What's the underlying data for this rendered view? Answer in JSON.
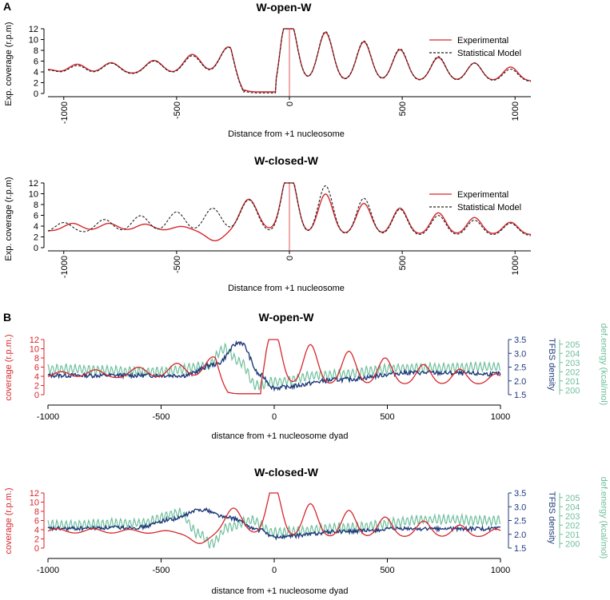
{
  "panel_labels": [
    "A",
    "B"
  ],
  "colors": {
    "experimental": "#d7262c",
    "model": "#222222",
    "coverage": "#d7262c",
    "tfbs": "#1f3a7a",
    "energy": "#6fbf9d",
    "axis": "#000000",
    "marker": "#d7262c"
  },
  "chart_data": [
    {
      "type": "line",
      "title": "W-open-W",
      "xlabel": "Distance from +1 nucleosome",
      "ylabel": "Exp. coverage (r.p.m)",
      "xlim": [
        -1070,
        1070
      ],
      "ylim": [
        0,
        12
      ],
      "xticks": [
        -1000,
        -500,
        0,
        500,
        1000
      ],
      "xtick_labels": [
        "-1000",
        "-500",
        "0",
        "500",
        "1000"
      ],
      "yticks": [
        0,
        2,
        4,
        6,
        8,
        10,
        12
      ],
      "ytick_labels": [
        "0",
        "2",
        "4",
        "6",
        "8",
        "10",
        "12"
      ],
      "vline": 0,
      "legend": [
        "Experimental",
        "Statistical Model"
      ],
      "series": [
        {
          "name": "Experimental",
          "style": "solid",
          "left_base": 4.5,
          "left_pos": [
            -1070,
            -940,
            -790,
            -600,
            -430,
            -270
          ],
          "left_amp": [
            0.6,
            1.3,
            1.5,
            1.8,
            2.6,
            3.6
          ],
          "gap": [
            -200,
            -60
          ],
          "gap_level": 0.3,
          "right_pos": [
            0,
            160,
            330,
            490,
            660,
            820,
            980
          ],
          "right_amp": [
            8.0,
            6.2,
            5.0,
            4.0,
            3.0,
            2.3,
            1.8
          ],
          "right_base": 3.9
        },
        {
          "name": "Statistical Model",
          "style": "dashed",
          "left_base": 4.4,
          "left_pos": [
            -1070,
            -940,
            -790,
            -600,
            -430,
            -270
          ],
          "left_amp": [
            0.6,
            1.2,
            1.5,
            1.8,
            2.5,
            3.6
          ],
          "gap": [
            -200,
            -60
          ],
          "gap_level": 0.1,
          "right_pos": [
            0,
            160,
            330,
            490,
            660,
            820,
            980
          ],
          "right_amp": [
            8.2,
            6.4,
            5.2,
            4.2,
            3.2,
            2.4,
            1.6
          ],
          "right_base": 3.8
        }
      ]
    },
    {
      "type": "line",
      "title": "W-closed-W",
      "xlabel": "Distance from +1 nucleosome",
      "ylabel": "Exp. coverage (r.p.m)",
      "xlim": [
        -1070,
        1070
      ],
      "ylim": [
        0,
        12
      ],
      "xticks": [
        -1000,
        -500,
        0,
        500,
        1000
      ],
      "xtick_labels": [
        "-1000",
        "-500",
        "0",
        "500",
        "1000"
      ],
      "yticks": [
        0,
        2,
        4,
        6,
        8,
        10,
        12
      ],
      "ytick_labels": [
        "0",
        "2",
        "4",
        "6",
        "8",
        "10",
        "12"
      ],
      "vline": 0,
      "legend": [
        "Experimental",
        "Statistical Model"
      ],
      "series": [
        {
          "name": "Experimental",
          "style": "solid",
          "left_base": 4.0,
          "left_pos": [
            -960,
            -800,
            -640,
            -480,
            -330,
            -180
          ],
          "left_amp": [
            1.0,
            1.0,
            0.9,
            0.6,
            -1.3,
            4.2
          ],
          "right_pos": [
            0,
            160,
            330,
            490,
            660,
            820,
            980
          ],
          "right_amp": [
            8.0,
            5.2,
            4.0,
            3.4,
            2.8,
            2.2,
            1.6
          ],
          "right_base": 4.0
        },
        {
          "name": "Statistical Model",
          "style": "dashed",
          "left_base": 3.6,
          "left_pos": [
            -1000,
            -820,
            -660,
            -500,
            -340,
            -180
          ],
          "left_amp": [
            1.4,
            1.8,
            2.3,
            2.8,
            3.3,
            4.4
          ],
          "right_pos": [
            0,
            160,
            330,
            490,
            660,
            820,
            980
          ],
          "right_amp": [
            8.4,
            6.4,
            4.8,
            3.4,
            2.6,
            2.0,
            1.6
          ],
          "right_base": 3.8
        }
      ]
    },
    {
      "type": "line",
      "title": "W-open-W",
      "xlabel": "distance from +1 nucleosome dyad",
      "xlim": [
        -1000,
        1000
      ],
      "xticks": [
        -1000,
        -500,
        0,
        500,
        1000
      ],
      "xtick_labels": [
        "-1000",
        "-500",
        "0",
        "500",
        "1000"
      ],
      "axes": {
        "left": {
          "label": "coverage (r.p.m.)",
          "lim": [
            0,
            12
          ],
          "ticks": [
            0,
            2,
            4,
            6,
            8,
            10,
            12
          ],
          "tick_labels": [
            "0",
            "2",
            "4",
            "6",
            "8",
            "10",
            "12"
          ]
        },
        "right1": {
          "label": "TFBS density",
          "lim": [
            1.5,
            3.5
          ],
          "ticks": [
            1.5,
            2.0,
            2.5,
            3.0,
            3.5
          ],
          "tick_labels": [
            "1.5",
            "2.0",
            "2.5",
            "3.0",
            "3.5"
          ]
        },
        "right2": {
          "label": "def.energy (kcal/mol)",
          "lim": [
            199.5,
            205.5
          ],
          "ticks": [
            200,
            201,
            202,
            203,
            204,
            205
          ],
          "tick_labels": [
            "200",
            "201",
            "202",
            "203",
            "204",
            "205"
          ]
        }
      },
      "series": [
        {
          "name": "coverage",
          "axis": "left",
          "left_base": 4.5,
          "left_pos": [
            -940,
            -790,
            -600,
            -430,
            -270
          ],
          "left_amp": [
            1.0,
            1.3,
            1.7,
            2.3,
            3.3
          ],
          "gap": [
            -200,
            -60
          ],
          "gap_level": 0.2,
          "right_pos": [
            0,
            160,
            330,
            490,
            660,
            820,
            980
          ],
          "right_amp": [
            8.0,
            6.0,
            5.0,
            4.0,
            3.0,
            2.3,
            1.6
          ],
          "right_base": 3.8
        },
        {
          "name": "TFBS density",
          "axis": "right1",
          "baseline": [
            [
              -1000,
              2.2
            ],
            [
              -400,
              2.2
            ],
            [
              -260,
              2.6
            ],
            [
              -150,
              3.4
            ],
            [
              -60,
              2.2
            ],
            [
              0,
              1.75
            ],
            [
              300,
              2.05
            ],
            [
              600,
              2.3
            ],
            [
              1000,
              2.25
            ]
          ],
          "noise": 0.08
        },
        {
          "name": "def.energy",
          "axis": "right2",
          "baseline": [
            [
              -1000,
              202.3
            ],
            [
              -500,
              202.0
            ],
            [
              -300,
              202.6
            ],
            [
              -220,
              204.5
            ],
            [
              -150,
              203.0
            ],
            [
              -80,
              200.5
            ],
            [
              0,
              200.9
            ],
            [
              200,
              201.6
            ],
            [
              600,
              202.4
            ],
            [
              1000,
              202.5
            ]
          ],
          "noise": 0.5
        }
      ]
    },
    {
      "type": "line",
      "title": "W-closed-W",
      "xlabel": "distance from +1 nucleosome dyad",
      "xlim": [
        -1000,
        1000
      ],
      "xticks": [
        -1000,
        -500,
        0,
        500,
        1000
      ],
      "xtick_labels": [
        "-1000",
        "-500",
        "0",
        "500",
        "1000"
      ],
      "axes": {
        "left": {
          "label": "coverage (r.p.m.)",
          "lim": [
            0,
            12
          ],
          "ticks": [
            0,
            2,
            4,
            6,
            8,
            10,
            12
          ],
          "tick_labels": [
            "0",
            "2",
            "4",
            "6",
            "8",
            "10",
            "12"
          ]
        },
        "right1": {
          "label": "TFBS density",
          "lim": [
            1.5,
            3.5
          ],
          "ticks": [
            1.5,
            2.0,
            2.5,
            3.0,
            3.5
          ],
          "tick_labels": [
            "1.5",
            "2.0",
            "2.5",
            "3.0",
            "3.5"
          ]
        },
        "right2": {
          "label": "def.energy (kcal/mol)",
          "lim": [
            199.5,
            205.5
          ],
          "ticks": [
            200,
            201,
            202,
            203,
            204,
            205
          ],
          "tick_labels": [
            "200",
            "201",
            "202",
            "203",
            "204",
            "205"
          ]
        }
      },
      "series": [
        {
          "name": "coverage",
          "axis": "left",
          "left_base": 4.0,
          "left_pos": [
            -960,
            -800,
            -640,
            -480,
            -330,
            -180
          ],
          "left_amp": [
            0.8,
            0.8,
            0.7,
            0.5,
            -1.5,
            4.0
          ],
          "right_pos": [
            0,
            160,
            330,
            490,
            660,
            820,
            980
          ],
          "right_amp": [
            7.6,
            5.0,
            4.0,
            3.0,
            2.4,
            1.8,
            1.2
          ],
          "right_base": 4.0
        },
        {
          "name": "TFBS density",
          "axis": "right1",
          "baseline": [
            [
              -1000,
              2.2
            ],
            [
              -600,
              2.25
            ],
            [
              -450,
              2.55
            ],
            [
              -320,
              2.9
            ],
            [
              -200,
              2.6
            ],
            [
              -60,
              2.15
            ],
            [
              0,
              1.9
            ],
            [
              300,
              2.1
            ],
            [
              600,
              2.2
            ],
            [
              1000,
              2.2
            ]
          ],
          "noise": 0.07
        },
        {
          "name": "def.energy",
          "axis": "right2",
          "baseline": [
            [
              -1000,
              202.0
            ],
            [
              -600,
              202.2
            ],
            [
              -420,
              203.3
            ],
            [
              -330,
              201.0
            ],
            [
              -280,
              200.0
            ],
            [
              -200,
              201.8
            ],
            [
              -100,
              202.5
            ],
            [
              0,
              201.2
            ],
            [
              300,
              201.7
            ],
            [
              700,
              202.6
            ],
            [
              1000,
              202.5
            ]
          ],
          "noise": 0.5
        }
      ]
    }
  ]
}
